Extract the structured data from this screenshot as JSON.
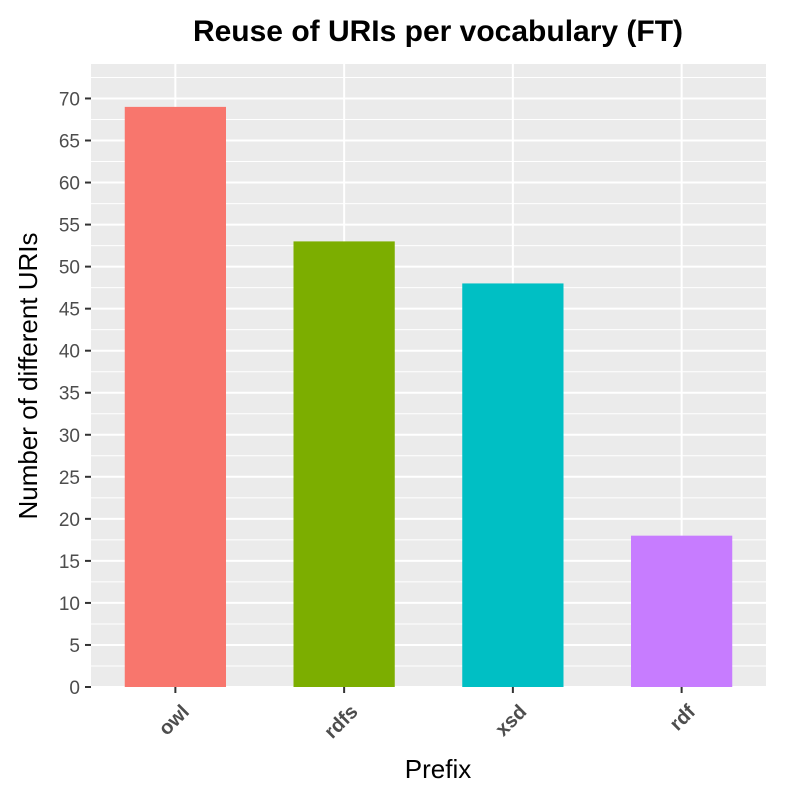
{
  "chart_data": {
    "type": "bar",
    "title": "Reuse of URIs per vocabulary (FT)",
    "xlabel": "Prefix",
    "ylabel": "Number of different URIs",
    "categories": [
      "owl",
      "rdfs",
      "xsd",
      "rdf"
    ],
    "values": [
      69,
      53,
      48,
      18
    ],
    "colors": [
      "#F8766D",
      "#7CAE00",
      "#00BFC4",
      "#C77CFF"
    ],
    "ylim": [
      0,
      74.1
    ],
    "yticks": [
      0,
      5,
      10,
      15,
      20,
      25,
      30,
      35,
      40,
      45,
      50,
      55,
      60,
      65,
      70
    ],
    "grid": true,
    "panel_background": "#EBEBEB",
    "grid_color": "#FFFFFF",
    "legend": "none"
  }
}
